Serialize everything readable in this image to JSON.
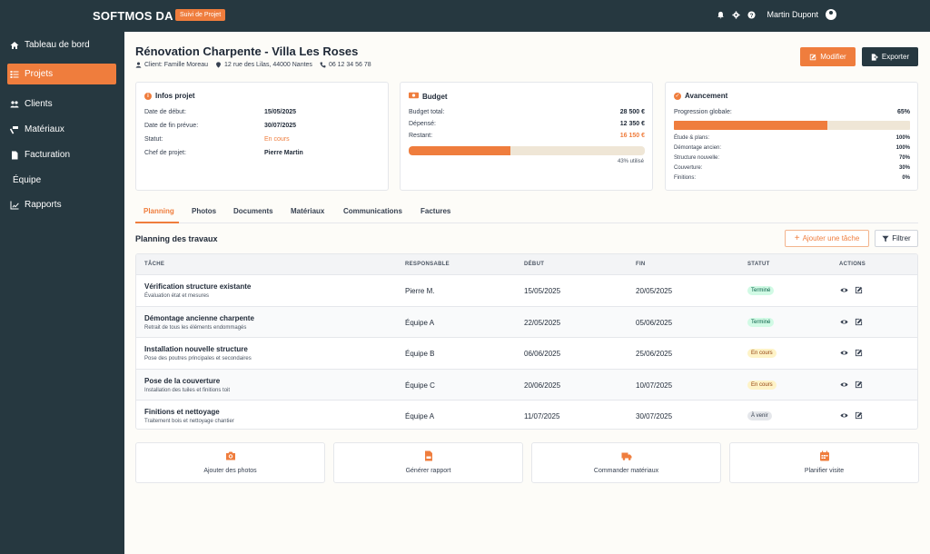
{
  "app": {
    "brand": "SOFTMOS DA",
    "badge": "Suivi de Projet",
    "user_name": "Martin Dupont"
  },
  "sidebar": {
    "items": [
      {
        "label": "Tableau de bord",
        "icon": "home-icon"
      },
      {
        "label": "Projets",
        "icon": "list-icon",
        "active": true
      },
      {
        "label": "Clients",
        "icon": "users-icon"
      },
      {
        "label": "Matériaux",
        "icon": "hammer-icon"
      },
      {
        "label": "Facturation",
        "icon": "invoice-icon"
      },
      {
        "label": "Équipe",
        "icon": ""
      },
      {
        "label": "Rapports",
        "icon": "chart-icon"
      }
    ]
  },
  "project": {
    "title": "Rénovation Charpente - Villa Les Roses",
    "client": "Client: Famille Moreau",
    "address": "12 rue des Lilas, 44000 Nantes",
    "phone": "06 12 34 56 78",
    "modify_label": "Modifier",
    "export_label": "Exporter"
  },
  "infos": {
    "title": "Infos projet",
    "rows": [
      {
        "label": "Date de début:",
        "value": "15/05/2025"
      },
      {
        "label": "Date de fin prévue:",
        "value": "30/07/2025"
      },
      {
        "label": "Statut:",
        "value": "En cours"
      },
      {
        "label": "Chef de projet:",
        "value": "Pierre Martin"
      }
    ]
  },
  "budget": {
    "title": "Budget",
    "rows": [
      {
        "label": "Budget total:",
        "value": "28 500 €"
      },
      {
        "label": "Dépensé:",
        "value": "12 350 €"
      },
      {
        "label": "Restant:",
        "value": "16 150 €"
      }
    ],
    "used_fraction": 0.43,
    "used_label": "43% utilisé"
  },
  "progress": {
    "title": "Avancement",
    "global_label": "Progression globale:",
    "global_value": "65%",
    "global_fraction": 0.65,
    "rows": [
      {
        "label": "Étude & plans:",
        "value": "100%"
      },
      {
        "label": "Démontage ancien:",
        "value": "100%"
      },
      {
        "label": "Structure nouvelle:",
        "value": "70%"
      },
      {
        "label": "Couverture:",
        "value": "30%"
      },
      {
        "label": "Finitions:",
        "value": "0%"
      }
    ]
  },
  "tabs": [
    "Planning",
    "Photos",
    "Documents",
    "Matériaux",
    "Communications",
    "Factures"
  ],
  "planning": {
    "title": "Planning des travaux",
    "add_label": "Ajouter une tâche",
    "filter_label": "Filtrer",
    "columns": [
      "TÂCHE",
      "RESPONSABLE",
      "DÉBUT",
      "FIN",
      "STATUT",
      "ACTIONS"
    ],
    "rows": [
      {
        "task": "Vérification structure existante",
        "desc": "Évaluation état et mesures",
        "owner": "Pierre M.",
        "start": "15/05/2025",
        "end": "20/05/2025",
        "status": "Terminé",
        "status_kind": "done"
      },
      {
        "task": "Démontage ancienne charpente",
        "desc": "Retrait de tous les éléments endommagés",
        "owner": "Équipe A",
        "start": "22/05/2025",
        "end": "05/06/2025",
        "status": "Terminé",
        "status_kind": "done"
      },
      {
        "task": "Installation nouvelle structure",
        "desc": "Pose des poutres principales et secondaires",
        "owner": "Équipe B",
        "start": "06/06/2025",
        "end": "25/06/2025",
        "status": "En cours",
        "status_kind": "progress"
      },
      {
        "task": "Pose de la couverture",
        "desc": "Installation des tuiles et finitions toit",
        "owner": "Équipe C",
        "start": "20/06/2025",
        "end": "10/07/2025",
        "status": "En cours",
        "status_kind": "progress"
      },
      {
        "task": "Finitions et nettoyage",
        "desc": "Traitement bois et nettoyage chantier",
        "owner": "Équipe A",
        "start": "11/07/2025",
        "end": "30/07/2025",
        "status": "À venir",
        "status_kind": "todo"
      }
    ]
  },
  "quick_actions": [
    {
      "label": "Ajouter des photos",
      "icon": "camera-icon"
    },
    {
      "label": "Générer rapport",
      "icon": "pdf-file-icon"
    },
    {
      "label": "Commander matériaux",
      "icon": "truck-icon"
    },
    {
      "label": "Planifier visite",
      "icon": "calendar-icon"
    }
  ],
  "colors": {
    "accent": "#ef7d3d",
    "dark": "#263840"
  }
}
